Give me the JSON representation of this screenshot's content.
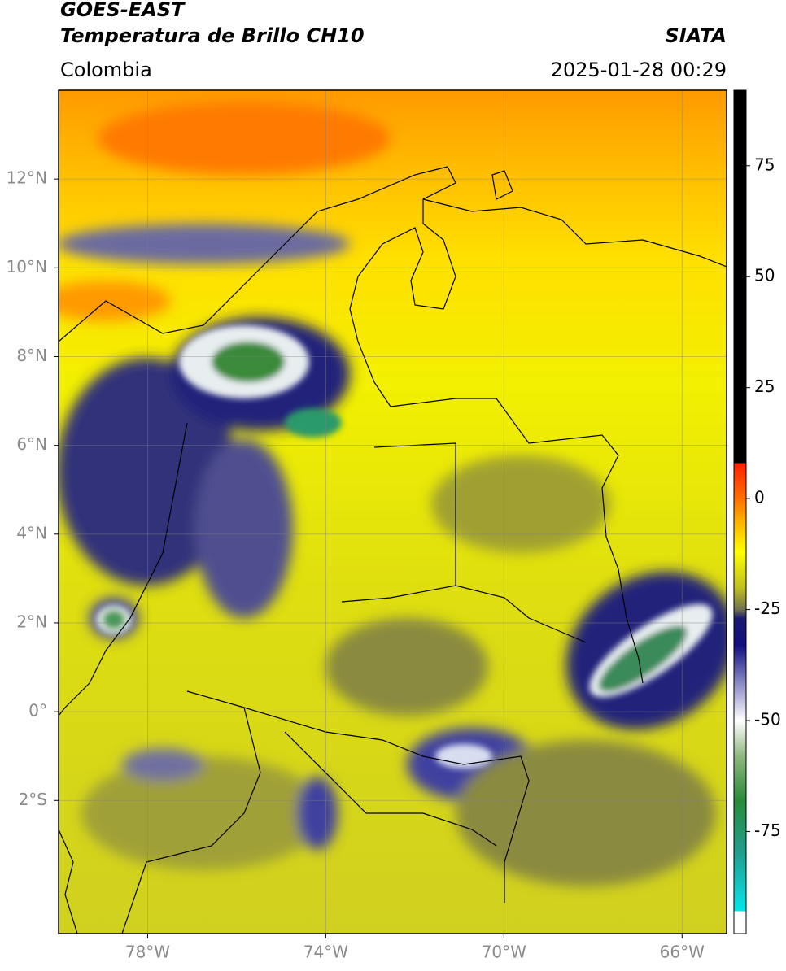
{
  "chart_data": {
    "type": "map",
    "title": "GOES-EAST",
    "subtitle": "Temperatura de Brillo CH10",
    "source": "SIATA",
    "region": "Colombia",
    "timestamp": "2025-01-28 00:29",
    "xlim": [
      -80,
      -65
    ],
    "ylim": [
      -5,
      14
    ],
    "xticks": [
      {
        "value": -78,
        "label": "78°W"
      },
      {
        "value": -74,
        "label": "74°W"
      },
      {
        "value": -70,
        "label": "70°W"
      },
      {
        "value": -66,
        "label": "66°W"
      }
    ],
    "yticks": [
      {
        "value": 12,
        "label": "12°N"
      },
      {
        "value": 10,
        "label": "10°N"
      },
      {
        "value": 8,
        "label": "8°N"
      },
      {
        "value": 6,
        "label": "6°N"
      },
      {
        "value": 4,
        "label": "4°N"
      },
      {
        "value": 2,
        "label": "2°N"
      },
      {
        "value": 0,
        "label": "0°"
      },
      {
        "value": -2,
        "label": "2°S"
      }
    ],
    "grid": true,
    "colorbar": {
      "lim": [
        -98,
        92
      ],
      "ticks": [
        75,
        50,
        25,
        0,
        -25,
        -50,
        -75
      ],
      "colormap": [
        {
          "value": -98,
          "color": "#ffffff"
        },
        {
          "value": -93,
          "color": "#ffffff"
        },
        {
          "value": -93,
          "color": "#00e8e8"
        },
        {
          "value": -89,
          "color": "#10d0d0"
        },
        {
          "value": -80,
          "color": "#20a090"
        },
        {
          "value": -68,
          "color": "#2a8a3a"
        },
        {
          "value": -58,
          "color": "#90b880"
        },
        {
          "value": -50,
          "color": "#ffffff"
        },
        {
          "value": -42,
          "color": "#9090c8"
        },
        {
          "value": -33,
          "color": "#101080"
        },
        {
          "value": -27,
          "color": "#1a1a70"
        },
        {
          "value": -25,
          "color": "#707050"
        },
        {
          "value": -20,
          "color": "#c0c020"
        },
        {
          "value": -12,
          "color": "#ffff00"
        },
        {
          "value": -5,
          "color": "#ffb000"
        },
        {
          "value": 0,
          "color": "#ff7000"
        },
        {
          "value": 8,
          "color": "#ff2000"
        },
        {
          "value": 8,
          "color": "#000000"
        },
        {
          "value": 92,
          "color": "#000000"
        }
      ]
    }
  }
}
